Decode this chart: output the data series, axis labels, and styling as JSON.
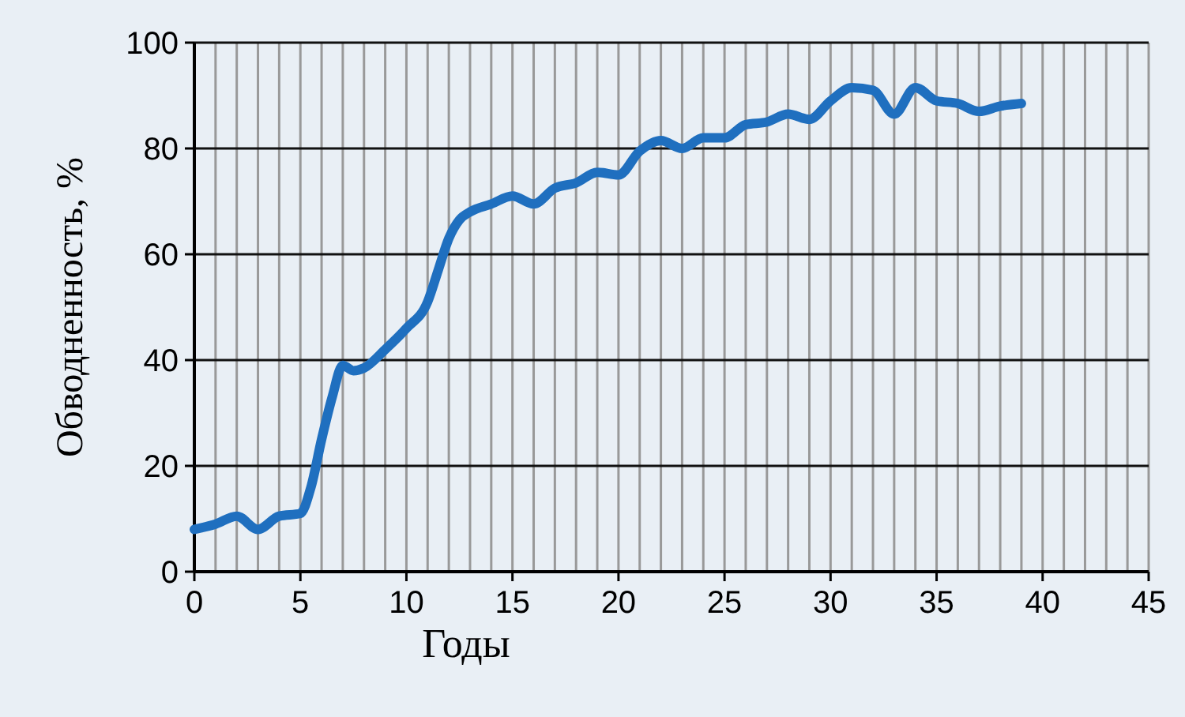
{
  "chart_data": {
    "type": "line",
    "xlabel": "Годы",
    "ylabel": "Обводненность, %",
    "x": [
      0,
      1,
      2,
      3,
      4,
      5,
      5.5,
      6,
      6.5,
      7,
      7.5,
      8,
      9,
      10,
      11,
      11.5,
      12,
      12.5,
      13,
      14,
      15,
      16,
      17,
      18,
      19,
      20,
      21,
      22,
      23,
      24,
      25,
      26,
      27,
      28,
      29,
      30,
      31,
      32,
      33,
      34,
      35,
      36,
      37,
      38,
      39
    ],
    "series": [
      {
        "color": "#1f6fbf",
        "values": [
          8,
          9,
          10.5,
          8,
          10.5,
          11,
          16,
          25,
          33,
          39,
          38,
          38.5,
          42,
          46,
          51,
          57,
          63,
          66.5,
          68,
          69.5,
          71,
          69.5,
          72.5,
          73.5,
          75.5,
          75,
          79.5,
          81.5,
          80,
          82,
          82,
          84.5,
          85,
          86.5,
          85.5,
          89,
          91.5,
          91,
          86.5,
          91.5,
          89,
          88.5,
          87,
          88,
          88.5
        ]
      }
    ],
    "xlim": [
      0,
      45
    ],
    "ylim": [
      0,
      100
    ],
    "xticks": [
      0,
      {
        "value": 1,
        "label": null
      },
      {
        "value": 2,
        "label": null
      },
      {
        "value": 3,
        "label": null
      },
      {
        "value": 4,
        "label": null
      },
      5,
      {
        "value": 6,
        "label": null
      },
      {
        "value": 7,
        "label": null
      },
      {
        "value": 8,
        "label": null
      },
      {
        "value": 9,
        "label": null
      },
      10,
      {
        "value": 11,
        "label": null
      },
      {
        "value": 12,
        "label": null
      },
      {
        "value": 13,
        "label": null
      },
      {
        "value": 14,
        "label": null
      },
      15,
      {
        "value": 16,
        "label": null
      },
      {
        "value": 17,
        "label": null
      },
      {
        "value": 18,
        "label": null
      },
      {
        "value": 19,
        "label": null
      },
      20,
      {
        "value": 21,
        "label": null
      },
      {
        "value": 22,
        "label": null
      },
      {
        "value": 23,
        "label": null
      },
      {
        "value": 24,
        "label": null
      },
      25,
      {
        "value": 26,
        "label": null
      },
      {
        "value": 27,
        "label": null
      },
      {
        "value": 28,
        "label": null
      },
      {
        "value": 29,
        "label": null
      },
      30,
      {
        "value": 31,
        "label": null
      },
      {
        "value": 32,
        "label": null
      },
      {
        "value": 33,
        "label": null
      },
      {
        "value": 34,
        "label": null
      },
      35,
      {
        "value": 36,
        "label": null
      },
      {
        "value": 37,
        "label": null
      },
      {
        "value": 38,
        "label": null
      },
      {
        "value": 39,
        "label": null
      },
      40,
      {
        "value": 41,
        "label": null
      },
      {
        "value": 42,
        "label": null
      },
      {
        "value": 43,
        "label": null
      },
      {
        "value": 44,
        "label": null
      },
      45
    ],
    "yticks": [
      0,
      20,
      40,
      60,
      80,
      100
    ],
    "grid": true,
    "marker": "none",
    "line_style": "solid"
  }
}
